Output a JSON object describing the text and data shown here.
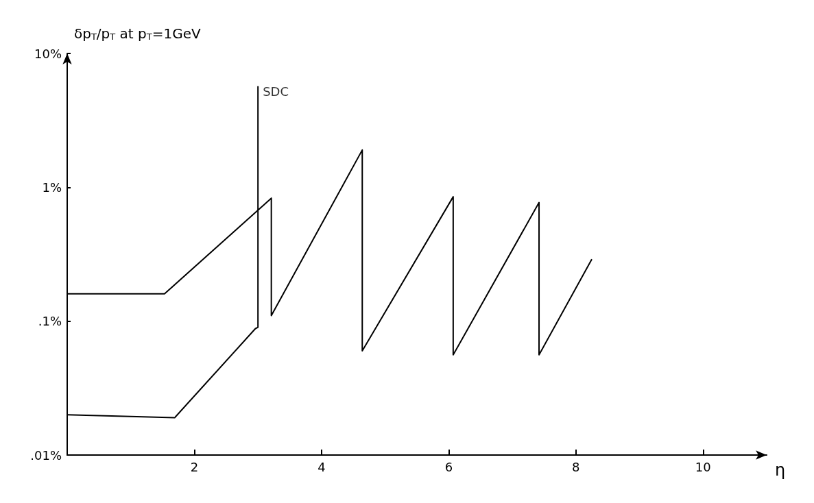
{
  "chart_data": {
    "type": "line",
    "ylabel": "δp$_{T}$/p$_{T}$ at p$_{T}$=1GeV",
    "xlabel": "η",
    "xlim": [
      0,
      11
    ],
    "xticks": [
      2,
      4,
      6,
      8,
      10
    ],
    "ylim": [
      0.01,
      10
    ],
    "yticks": [
      {
        "value": 0.01,
        "label": ".01%"
      },
      {
        "value": 0.1,
        "label": ".1%"
      },
      {
        "value": 1,
        "label": "1%"
      },
      {
        "value": 10,
        "label": "10%"
      }
    ],
    "log": "y",
    "grid": false,
    "marker": "none",
    "line_style": "solid",
    "series": [
      {
        "color": "#000000",
        "x": [
          0,
          1.53,
          3.21,
          3.21,
          4.64,
          4.64,
          6.07,
          6.07,
          7.42,
          7.42,
          8.25
        ],
        "values": [
          0.16,
          0.16,
          0.83,
          0.11,
          1.9,
          0.06,
          0.85,
          0.056,
          0.77,
          0.056,
          0.29
        ]
      },
      {
        "color": "#000000",
        "x": [
          0,
          1.69,
          2.96,
          3.0,
          3.0
        ],
        "values": [
          0.02,
          0.019,
          0.088,
          0.09,
          5.7
        ]
      }
    ],
    "annotations": [
      {
        "text": "SDC",
        "x": 3.0,
        "y": 5.7
      }
    ]
  }
}
